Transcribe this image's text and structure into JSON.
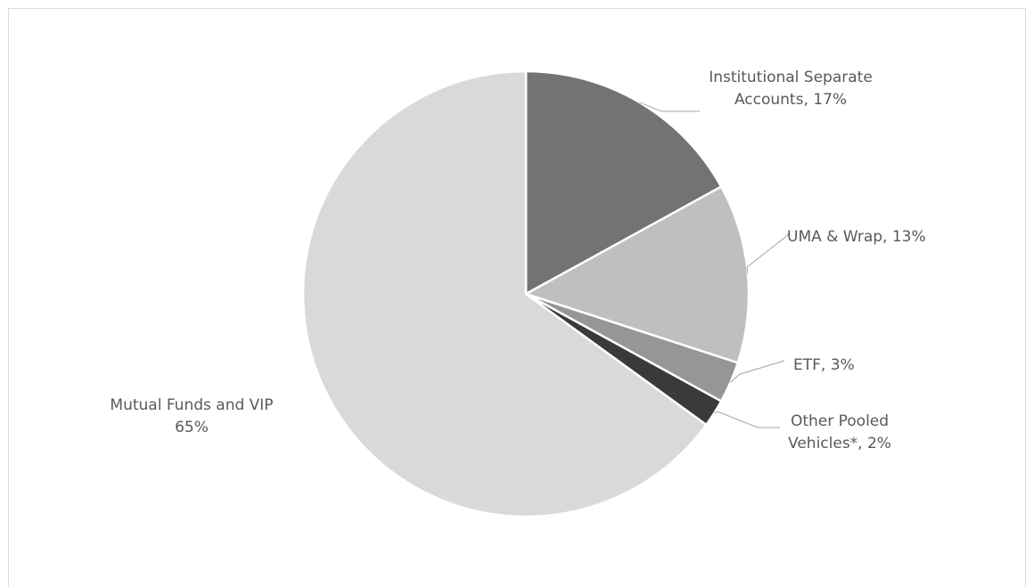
{
  "chart_data": {
    "type": "pie",
    "title": "",
    "start_angle_deg": 0,
    "direction": "clockwise",
    "legend": "none",
    "slices": [
      {
        "label_lines": [
          "Institutional Separate",
          "Accounts, 17%"
        ],
        "value": 17,
        "color": "#737373"
      },
      {
        "label_lines": [
          "UMA & Wrap, 13%"
        ],
        "value": 13,
        "color": "#bfbfbf"
      },
      {
        "label_lines": [
          "ETF, 3%"
        ],
        "value": 3,
        "color": "#969696"
      },
      {
        "label_lines": [
          "Other Pooled",
          "Vehicles*, 2%"
        ],
        "value": 2,
        "color": "#3a3a3a"
      },
      {
        "label_lines": [
          "Mutual Funds and VIP",
          "65%"
        ],
        "value": 65,
        "color": "#d9d9d9"
      }
    ]
  }
}
